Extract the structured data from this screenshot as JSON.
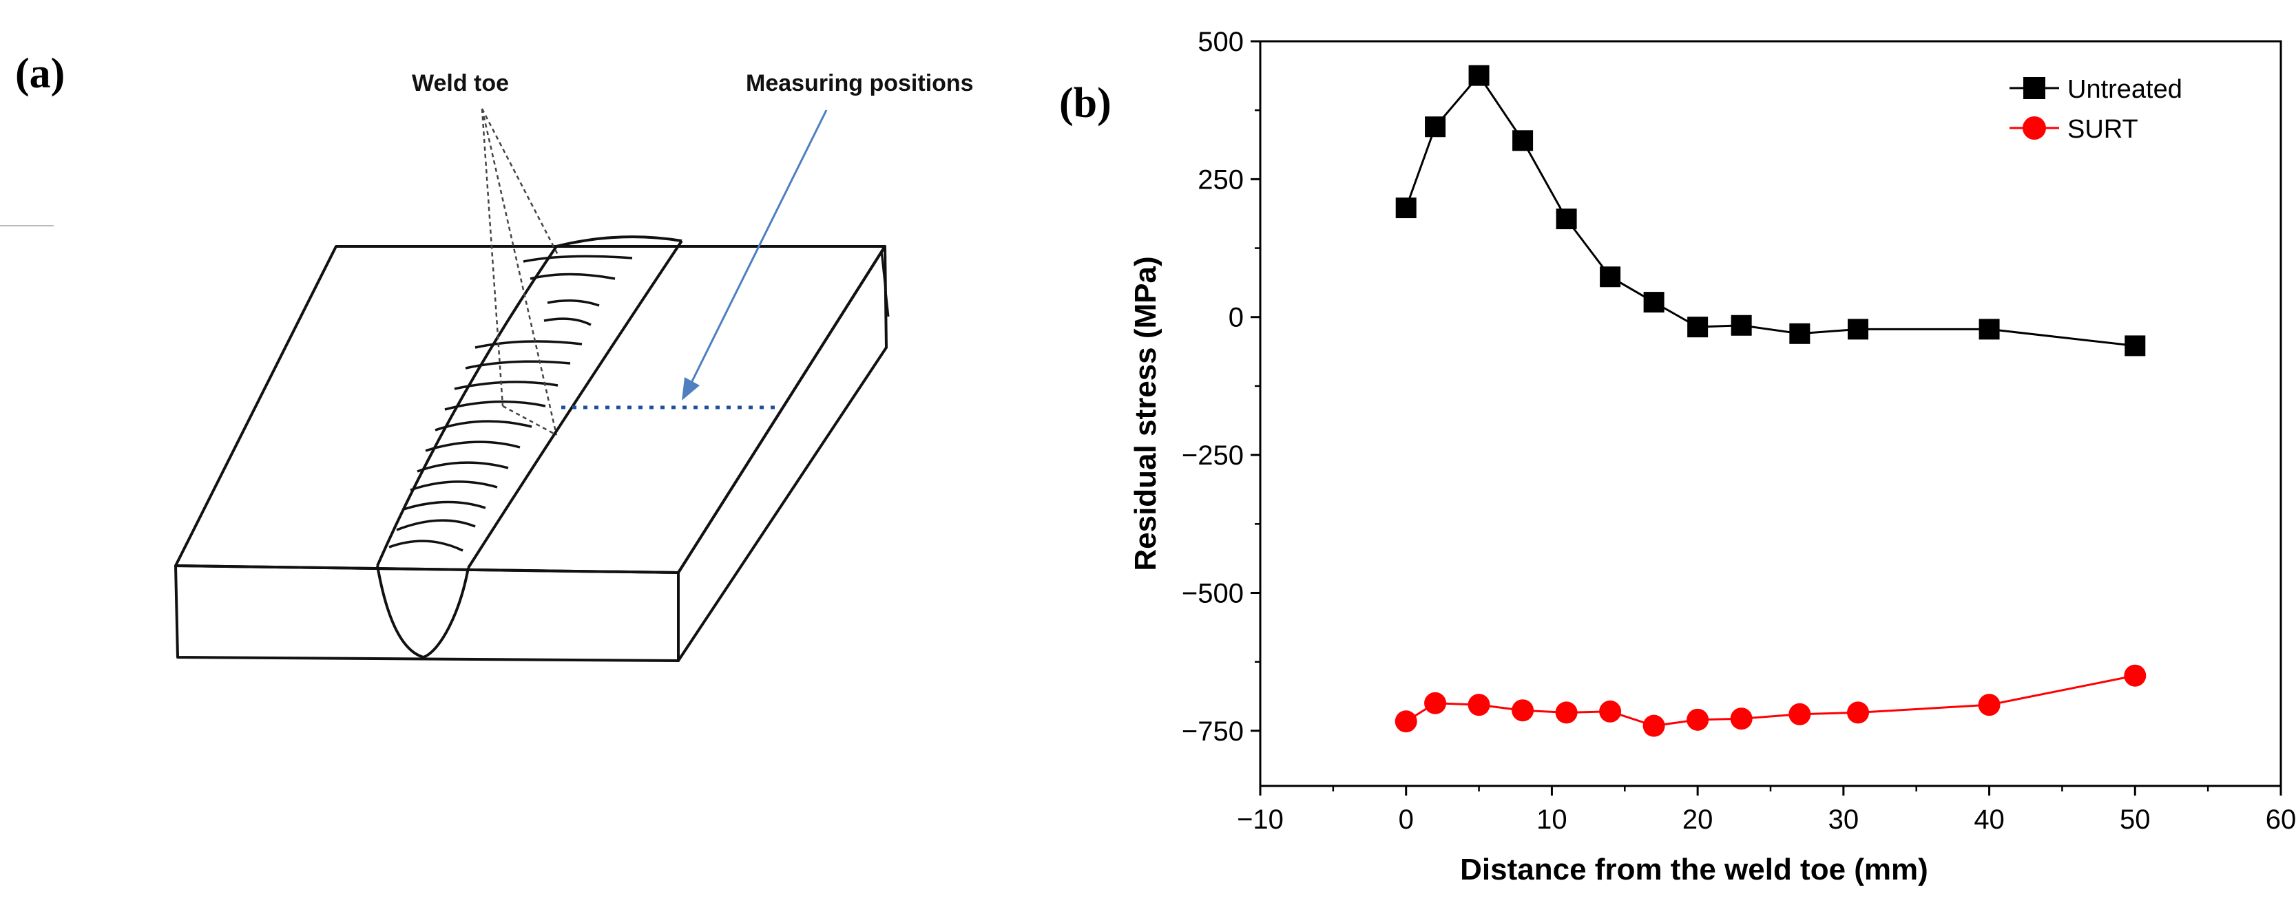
{
  "panel_a": {
    "label": "(a)",
    "weld_toe_label": "Weld toe",
    "measuring_positions_label": "Measuring positions"
  },
  "panel_b": {
    "label": "(b)"
  },
  "colors": {
    "untreated": "#000000",
    "surt": "#ff0000"
  },
  "chart_data": {
    "type": "line",
    "title": "",
    "xlabel": "Distance from the weld toe (mm)",
    "ylabel": "Residual stress (MPa)",
    "xlim": [
      -10,
      60
    ],
    "ylim": [
      -850,
      500
    ],
    "x_ticks": [
      -10,
      0,
      10,
      20,
      30,
      40,
      50,
      60
    ],
    "x_tick_labels": [
      "−10",
      "0",
      "10",
      "20",
      "30",
      "40",
      "50",
      "60"
    ],
    "y_ticks": [
      500,
      250,
      0,
      -250,
      -500,
      -750
    ],
    "y_tick_labels": [
      "500",
      "250",
      "0",
      "−250",
      "−500",
      "−750"
    ],
    "grid": false,
    "legend_position": "top-right",
    "series": [
      {
        "name": "Untreated",
        "marker": "square",
        "x": [
          0,
          2,
          5,
          8,
          11,
          14,
          17,
          20,
          23,
          27,
          31,
          40,
          50
        ],
        "y": [
          198,
          345,
          438,
          320,
          178,
          73,
          27,
          -18,
          -15,
          -30,
          -22,
          -22,
          -52
        ]
      },
      {
        "name": "SURT",
        "marker": "circle",
        "x": [
          0,
          2,
          5,
          8,
          11,
          14,
          17,
          20,
          23,
          27,
          31,
          40,
          50
        ],
        "y": [
          -733,
          -700,
          -703,
          -713,
          -717,
          -715,
          -741,
          -730,
          -728,
          -720,
          -717,
          -703,
          -650
        ]
      }
    ]
  }
}
